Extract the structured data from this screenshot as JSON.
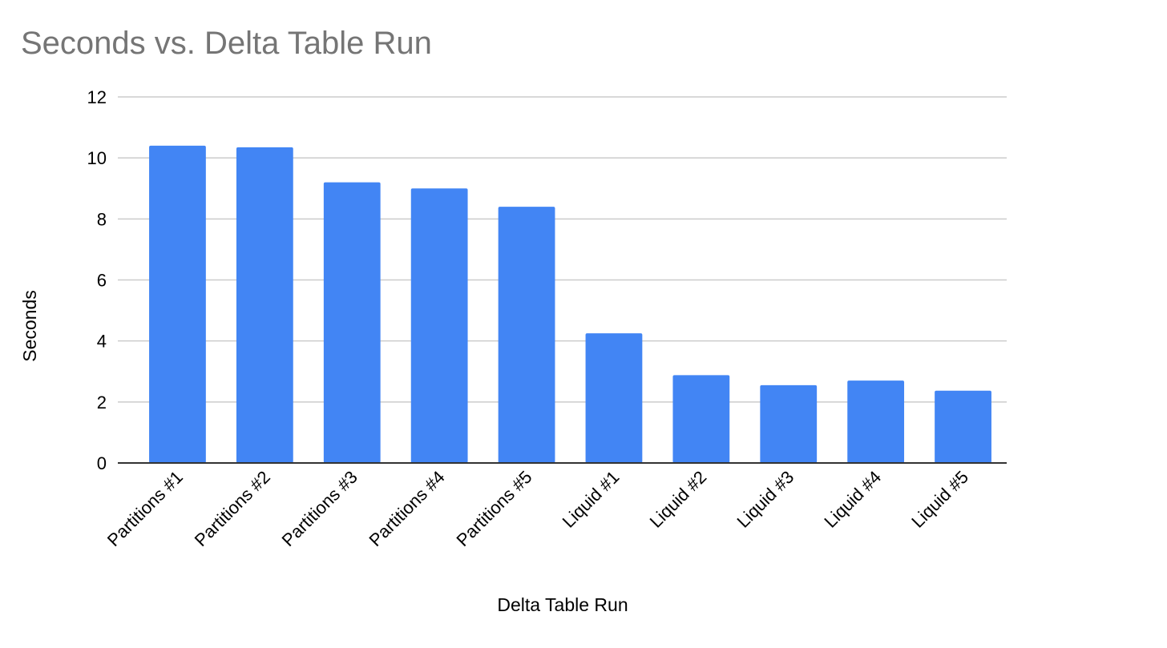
{
  "chart_data": {
    "type": "bar",
    "title": "Seconds vs. Delta Table Run",
    "xlabel": "Delta Table Run",
    "ylabel": "Seconds",
    "categories": [
      "Partitions #1",
      "Partitions #2",
      "Partitions #3",
      "Partitions #4",
      "Partitions #5",
      "Liquid #1",
      "Liquid #2",
      "Liquid #3",
      "Liquid #4",
      "Liquid #5"
    ],
    "values": [
      10.4,
      10.35,
      9.2,
      9.0,
      8.4,
      4.25,
      2.88,
      2.55,
      2.7,
      2.37
    ],
    "ylim": [
      0,
      12
    ],
    "yticks": [
      0,
      2,
      4,
      6,
      8,
      10,
      12
    ],
    "grid": true,
    "legend": "none",
    "bar_color": "#4285f4",
    "grid_color": "#cccccc",
    "axis_color": "#333333",
    "title_color": "#757575"
  }
}
